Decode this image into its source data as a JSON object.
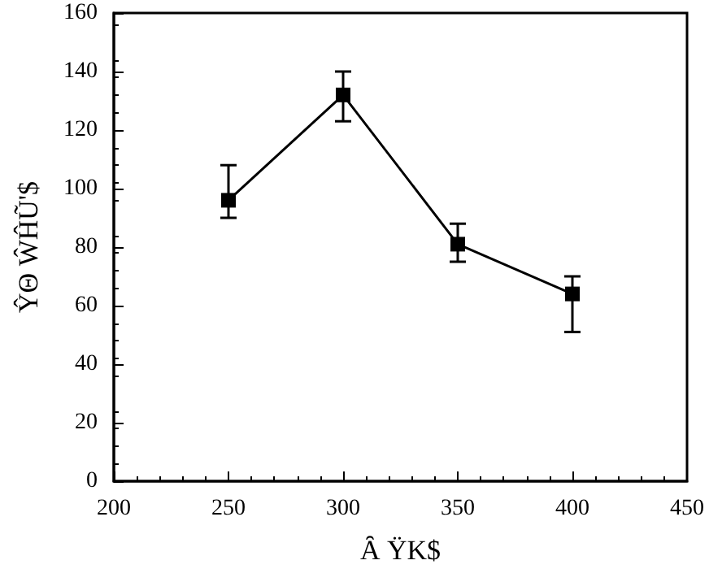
{
  "chart_data": {
    "type": "line",
    "xlabel": "Ȃ ŸK$",
    "ylabel": "ŶΘ ŴĤŨ'$",
    "x": [
      250,
      300,
      350,
      400
    ],
    "series": [
      {
        "color": "#000000",
        "values": [
          96,
          132,
          81,
          64
        ],
        "errors": [
          [
            90,
            108
          ],
          [
            123,
            140
          ],
          [
            75,
            88
          ],
          [
            51,
            70
          ]
        ]
      }
    ],
    "xlim": [
      200,
      450
    ],
    "xticks": [
      200,
      250,
      300,
      350,
      400,
      450
    ],
    "ylim": [
      0,
      160
    ],
    "yticks": [
      0,
      20,
      40,
      60,
      80,
      100,
      120,
      140,
      160
    ],
    "grid": false,
    "marker": "square",
    "line_style": "solid"
  }
}
